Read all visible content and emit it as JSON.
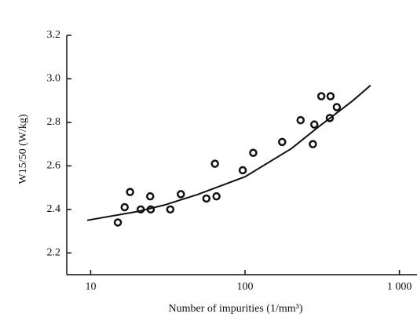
{
  "chart_data": {
    "type": "scatter",
    "xlabel": "Number of impurities (1/mm³)",
    "ylabel": "W15/50 (W/kg)",
    "xscale": "log",
    "xlim": [
      7,
      1300
    ],
    "ylim": [
      2.1,
      3.2
    ],
    "xticks": [
      10,
      100,
      {
        "value": 1000,
        "label": "1 000"
      }
    ],
    "yticks": [
      2.2,
      2.4,
      2.6,
      2.8,
      {
        "value": 3,
        "label": "3.0"
      },
      3.2
    ],
    "series": [
      {
        "type": "scatter",
        "color": "#111111",
        "x": [
          15.0,
          16.6,
          18.0,
          21.1,
          24.3,
          24.5,
          32.8,
          38.4,
          56.2,
          63.8,
          65.3,
          96.6,
          113,
          174,
          229,
          275,
          281,
          312,
          358,
          354,
          393
        ],
        "values": [
          2.34,
          2.41,
          2.48,
          2.4,
          2.46,
          2.4,
          2.4,
          2.47,
          2.45,
          2.61,
          2.46,
          2.58,
          2.66,
          2.71,
          2.81,
          2.7,
          2.79,
          2.92,
          2.92,
          2.82,
          2.87
        ]
      },
      {
        "type": "line",
        "color": "#111111",
        "x": [
          9.5,
          20,
          30,
          50,
          100,
          200,
          300,
          500,
          650
        ],
        "values": [
          2.35,
          2.39,
          2.42,
          2.47,
          2.55,
          2.68,
          2.78,
          2.9,
          2.97
        ]
      }
    ]
  }
}
